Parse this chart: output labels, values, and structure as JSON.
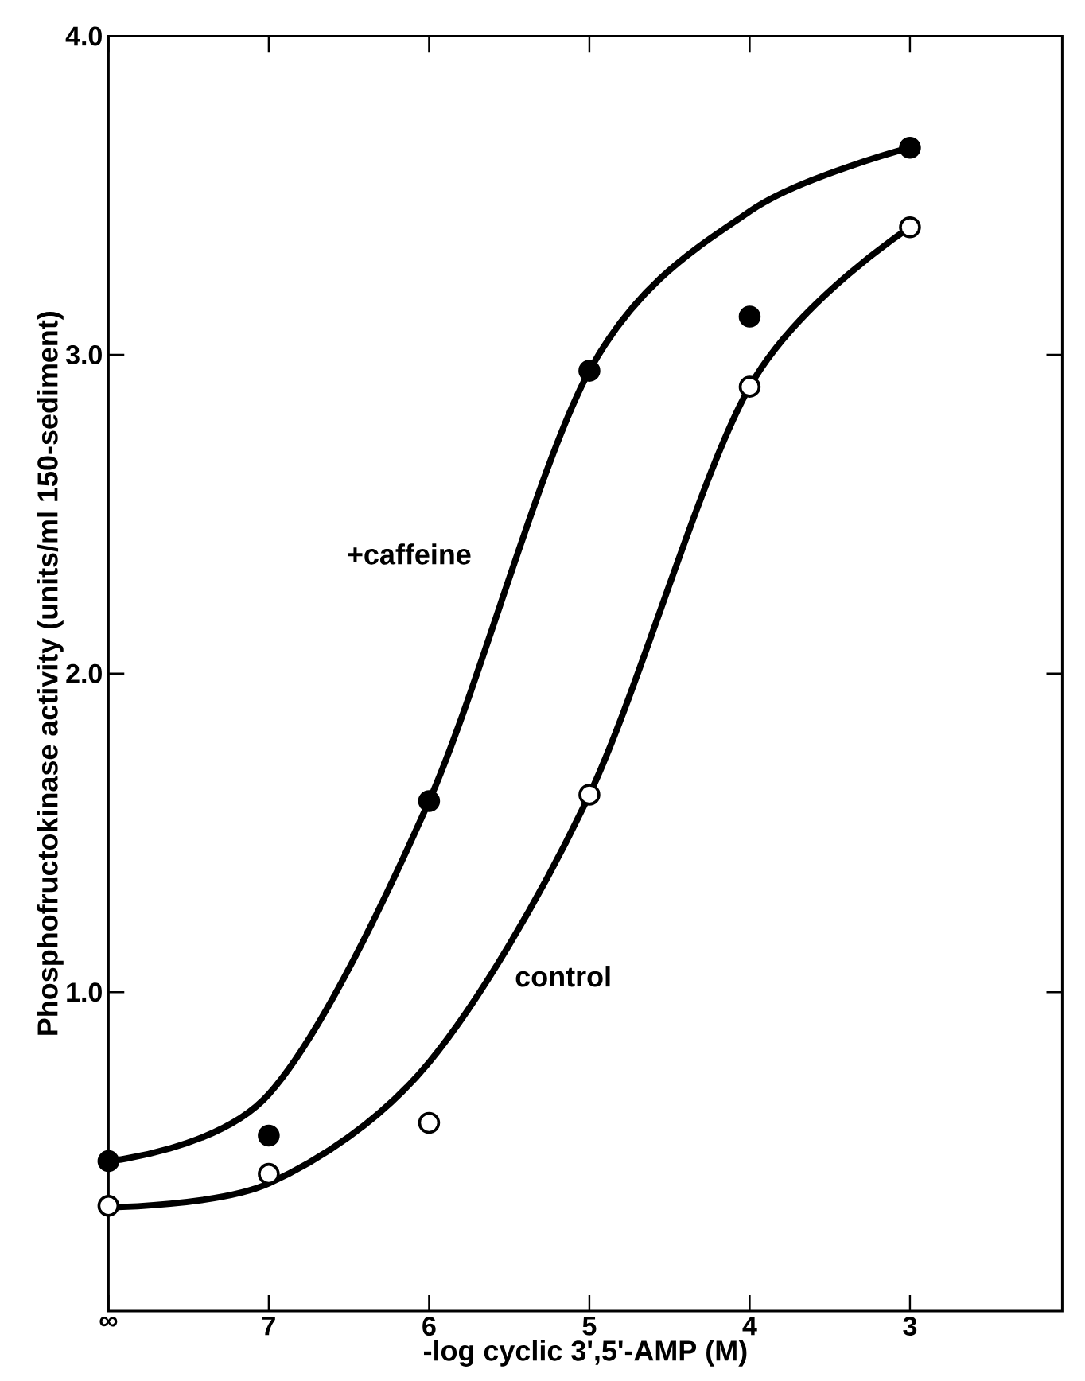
{
  "chart_data": {
    "type": "scatter",
    "xlabel": "-log cyclic 3',5'-AMP (M)",
    "ylabel": "Phosphofructokinase activity (units/ml 150-sediment)",
    "categories": [
      "∞",
      "7",
      "6",
      "5",
      "4",
      "3"
    ],
    "ylim": [
      0,
      4
    ],
    "yticks": [
      {
        "value": 1,
        "label": "1.0"
      },
      {
        "value": 2,
        "label": "2.0"
      },
      {
        "value": 3,
        "label": "3.0"
      },
      {
        "value": 4,
        "label": "4.0"
      }
    ],
    "grid": false,
    "series": [
      {
        "type": "line",
        "name": "+caffeine",
        "marker": "none",
        "color": "#000000",
        "values": [
          0.47,
          0.68,
          1.6,
          2.95,
          3.45,
          3.65
        ]
      },
      {
        "type": "line",
        "name": "control",
        "marker": "none",
        "color": "#000000",
        "values": [
          0.325,
          0.4,
          0.78,
          1.62,
          2.9,
          3.4
        ]
      },
      {
        "marker": "circle",
        "color": "#000000",
        "values": [
          0.47,
          0.55,
          1.6,
          2.95,
          3.12,
          3.65
        ]
      },
      {
        "marker": "circle",
        "color": "#ffffff",
        "values": [
          0.33,
          0.43,
          0.59,
          1.62,
          2.9,
          3.4
        ]
      }
    ]
  }
}
